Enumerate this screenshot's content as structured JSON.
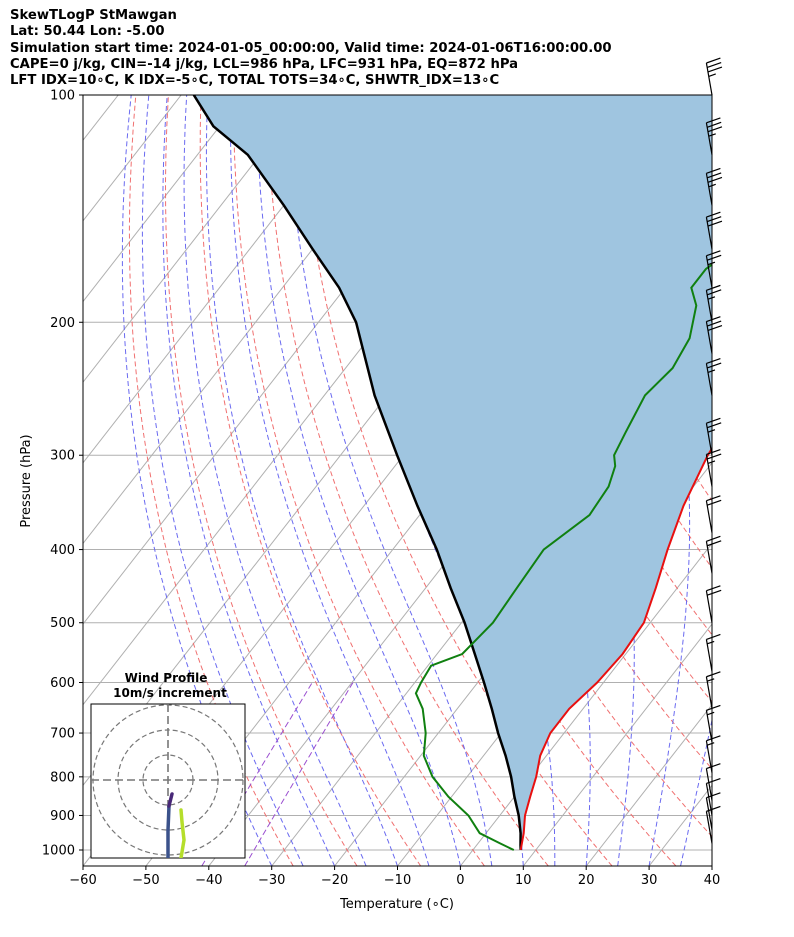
{
  "header": {
    "line1": "SkewTLogP StMawgan",
    "line2": "Lat: 50.44   Lon: -5.00",
    "line3": "Simulation start time: 2024-01-05_00:00:00, Valid time: 2024-01-06T16:00:00.00",
    "line4": "CAPE=0 j/kg, CIN=-14 j/kg, LCL=986 hPa, LFC=931 hPa, EQ=872 hPa",
    "line5": "LFT IDX=10∘C, K IDX=-5∘C, TOTAL TOTS=34∘C, SHWTR_IDX=13∘C"
  },
  "chart_data": {
    "type": "skewt",
    "xlabel": "Temperature (∘C)",
    "ylabel": "Pressure (hPa)",
    "xlim": [
      -60,
      40
    ],
    "ylim": [
      1050,
      100
    ],
    "x_ticks": [
      -60,
      -50,
      -40,
      -30,
      -20,
      -10,
      0,
      10,
      20,
      30,
      40
    ],
    "y_ticks": [
      100,
      200,
      300,
      400,
      500,
      600,
      700,
      800,
      900,
      1000
    ],
    "y_scale": "log",
    "grid": true,
    "colors": {
      "temperature": "#e81010",
      "dewpoint": "#108010",
      "parcel": "#000000",
      "shading": "#9fc5e0",
      "dry_adiabats": "#f07070",
      "moist_adiabats": "#6a6af0",
      "mixing_ratio": "#9b4fd0",
      "isotherms": "#b0b0b0"
    },
    "series": [
      {
        "name": "temperature",
        "points": [
          [
            7.6,
            1000
          ],
          [
            6,
            950
          ],
          [
            4,
            900
          ],
          [
            2.5,
            850
          ],
          [
            1,
            800
          ],
          [
            -1,
            750
          ],
          [
            -2.2,
            700
          ],
          [
            -2.2,
            650
          ],
          [
            -1,
            600
          ],
          [
            -0.5,
            550
          ],
          [
            -1,
            500
          ],
          [
            -3.4,
            450
          ],
          [
            -6.3,
            400
          ],
          [
            -9.2,
            350
          ],
          [
            -11.6,
            300
          ],
          [
            -12.5,
            270
          ],
          [
            -12.6,
            250
          ],
          [
            -11.6,
            230
          ],
          [
            -7.4,
            200
          ],
          [
            -4,
            180
          ],
          [
            0,
            160
          ],
          [
            5,
            140
          ],
          [
            11,
            120
          ],
          [
            14,
            110
          ],
          [
            17.5,
            100
          ]
        ]
      },
      {
        "name": "dewpoint",
        "points": [
          [
            6.5,
            1000
          ],
          [
            3.5,
            980
          ],
          [
            -1,
            950
          ],
          [
            -5,
            900
          ],
          [
            -10.5,
            850
          ],
          [
            -15.5,
            800
          ],
          [
            -19.5,
            750
          ],
          [
            -22,
            700
          ],
          [
            -25.5,
            650
          ],
          [
            -28.5,
            620
          ],
          [
            -29,
            600
          ],
          [
            -29.5,
            570
          ],
          [
            -26,
            550
          ],
          [
            -25,
            500
          ],
          [
            -25.5,
            450
          ],
          [
            -26,
            400
          ],
          [
            -23,
            360
          ],
          [
            -23.5,
            330
          ],
          [
            -25,
            310
          ],
          [
            -26.5,
            300
          ],
          [
            -27.5,
            280
          ],
          [
            -29,
            250
          ],
          [
            -28,
            230
          ],
          [
            -29,
            210
          ],
          [
            -32,
            190
          ],
          [
            -35,
            180
          ],
          [
            -35,
            170
          ],
          [
            -31,
            150
          ],
          [
            -28,
            130
          ],
          [
            -24.5,
            100
          ]
        ]
      },
      {
        "name": "parcel",
        "points": [
          [
            7.6,
            1000
          ],
          [
            7,
            986
          ],
          [
            5.5,
            950
          ],
          [
            3,
            900
          ],
          [
            0,
            850
          ],
          [
            -3,
            800
          ],
          [
            -6.5,
            750
          ],
          [
            -10.5,
            700
          ],
          [
            -14.5,
            650
          ],
          [
            -19,
            600
          ],
          [
            -24,
            550
          ],
          [
            -29.5,
            500
          ],
          [
            -36,
            450
          ],
          [
            -43,
            400
          ],
          [
            -51.5,
            350
          ],
          [
            -61,
            300
          ],
          [
            -72,
            250
          ],
          [
            -84,
            200
          ],
          [
            -91,
            180
          ],
          [
            -100,
            160
          ],
          [
            -110,
            140
          ],
          [
            -122,
            120
          ],
          [
            -131,
            110
          ],
          [
            -138,
            100
          ]
        ]
      }
    ],
    "wind_barbs": [
      {
        "p": 100,
        "speed": 35
      },
      {
        "p": 120,
        "speed": 35
      },
      {
        "p": 140,
        "speed": 35
      },
      {
        "p": 160,
        "speed": 30
      },
      {
        "p": 180,
        "speed": 25
      },
      {
        "p": 200,
        "speed": 25
      },
      {
        "p": 220,
        "speed": 30
      },
      {
        "p": 250,
        "speed": 25
      },
      {
        "p": 300,
        "speed": 25
      },
      {
        "p": 330,
        "speed": 25
      },
      {
        "p": 380,
        "speed": 20
      },
      {
        "p": 430,
        "speed": 20
      },
      {
        "p": 500,
        "speed": 20
      },
      {
        "p": 580,
        "speed": 15
      },
      {
        "p": 650,
        "speed": 15
      },
      {
        "p": 720,
        "speed": 15
      },
      {
        "p": 790,
        "speed": 15
      },
      {
        "p": 860,
        "speed": 10
      },
      {
        "p": 900,
        "speed": 10
      },
      {
        "p": 940,
        "speed": 10
      },
      {
        "p": 980,
        "speed": 10
      }
    ],
    "inset": {
      "title": "Wind Profile",
      "subtitle": "10m/s increment"
    }
  }
}
